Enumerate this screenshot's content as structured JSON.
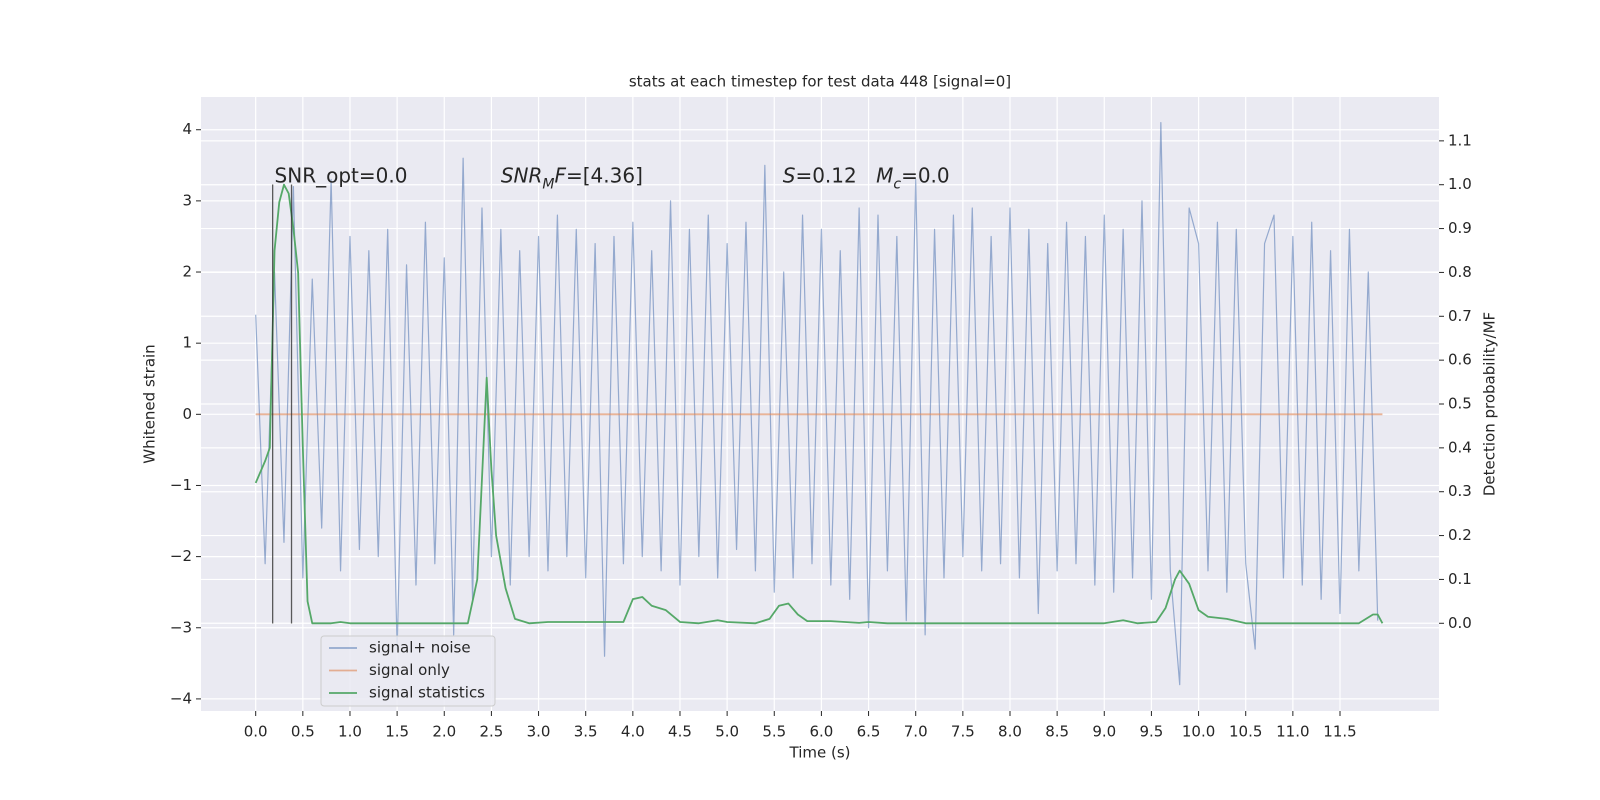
{
  "chart_data": {
    "type": "line",
    "title": "stats at each timestep for test data 448 [signal=0]",
    "xlabel": "Time (s)",
    "ylabel": "Whitened strain",
    "y2label": "Detection probability/MF",
    "xlim": [
      -0.58,
      12.55
    ],
    "ylim": [
      -4.17,
      4.46
    ],
    "y2lim": [
      -0.2,
      1.2
    ],
    "xticks": [
      {
        "value": 0,
        "label": "0.0"
      },
      {
        "value": 0.5,
        "label": "0.5"
      },
      {
        "value": 1,
        "label": "1.0"
      },
      {
        "value": 1.5,
        "label": "1.5"
      },
      {
        "value": 2,
        "label": "2.0"
      },
      {
        "value": 2.5,
        "label": "2.5"
      },
      {
        "value": 3,
        "label": "3.0"
      },
      {
        "value": 3.5,
        "label": "3.5"
      },
      {
        "value": 4,
        "label": "4.0"
      },
      {
        "value": 4.5,
        "label": "4.5"
      },
      {
        "value": 5,
        "label": "5.0"
      },
      {
        "value": 5.5,
        "label": "5.5"
      },
      {
        "value": 6,
        "label": "6.0"
      },
      {
        "value": 6.5,
        "label": "6.5"
      },
      {
        "value": 7,
        "label": "7.0"
      },
      {
        "value": 7.5,
        "label": "7.5"
      },
      {
        "value": 8,
        "label": "8.0"
      },
      {
        "value": 8.5,
        "label": "8.5"
      },
      {
        "value": 9,
        "label": "9.0"
      },
      {
        "value": 9.5,
        "label": "9.5"
      },
      {
        "value": 10,
        "label": "10.0"
      },
      {
        "value": 10.5,
        "label": "10.5"
      },
      {
        "value": 11,
        "label": "11.0"
      },
      {
        "value": 11.5,
        "label": "11.5"
      }
    ],
    "yticks": [
      {
        "value": -4,
        "label": "−4"
      },
      {
        "value": -3,
        "label": "−3"
      },
      {
        "value": -2,
        "label": "−2"
      },
      {
        "value": -1,
        "label": "−1"
      },
      0,
      1,
      2,
      3,
      4
    ],
    "y2ticks": [
      {
        "value": 0,
        "label": "0.0"
      },
      {
        "value": 0.1,
        "label": "0.1"
      },
      {
        "value": 0.2,
        "label": "0.2"
      },
      {
        "value": 0.3,
        "label": "0.3"
      },
      {
        "value": 0.4,
        "label": "0.4"
      },
      {
        "value": 0.5,
        "label": "0.5"
      },
      {
        "value": 0.6,
        "label": "0.6"
      },
      {
        "value": 0.7,
        "label": "0.7"
      },
      {
        "value": 0.8,
        "label": "0.8"
      },
      {
        "value": 0.9,
        "label": "0.9"
      },
      {
        "value": 1,
        "label": "1.0"
      },
      {
        "value": 1.1,
        "label": "1.1"
      }
    ],
    "grid": true,
    "legend": "lower left",
    "series": [
      {
        "name": "signal+ noise",
        "color": "#4c72b0",
        "axis": "y",
        "x": [
          0,
          0.1,
          0.2,
          0.3,
          0.4,
          0.5,
          0.6,
          0.7,
          0.8,
          0.9,
          1,
          1.1,
          1.2,
          1.3,
          1.4,
          1.5,
          1.6,
          1.7,
          1.8,
          1.9,
          2,
          2.1,
          2.2,
          2.3,
          2.4,
          2.5,
          2.6,
          2.7,
          2.8,
          2.9,
          3,
          3.1,
          3.2,
          3.3,
          3.4,
          3.5,
          3.6,
          3.7,
          3.8,
          3.9,
          4,
          4.1,
          4.2,
          4.3,
          4.4,
          4.5,
          4.6,
          4.7,
          4.8,
          4.9,
          5,
          5.1,
          5.2,
          5.3,
          5.4,
          5.5,
          5.6,
          5.7,
          5.8,
          5.9,
          6,
          6.1,
          6.2,
          6.3,
          6.4,
          6.5,
          6.6,
          6.7,
          6.8,
          6.9,
          7,
          7.1,
          7.2,
          7.3,
          7.4,
          7.5,
          7.6,
          7.7,
          7.8,
          7.9,
          8,
          8.1,
          8.2,
          8.3,
          8.4,
          8.5,
          8.6,
          8.7,
          8.8,
          8.9,
          9,
          9.1,
          9.2,
          9.3,
          9.4,
          9.5,
          9.6,
          9.7,
          9.8,
          9.9,
          10,
          10.1,
          10.2,
          10.3,
          10.4,
          10.5,
          10.6,
          10.7,
          10.8,
          10.9,
          11,
          11.1,
          11.2,
          11.3,
          11.4,
          11.5,
          11.6,
          11.7,
          11.8,
          11.9
        ],
        "values": [
          1.4,
          -2.1,
          2.0,
          -1.8,
          3.2,
          -2.3,
          1.9,
          -1.6,
          3.3,
          -2.2,
          2.5,
          -1.9,
          2.3,
          -2.0,
          2.6,
          -3.3,
          2.1,
          -2.4,
          2.7,
          -2.1,
          2.2,
          -3.1,
          3.6,
          -2.6,
          2.9,
          -2.0,
          2.6,
          -2.4,
          2.3,
          -2.0,
          2.5,
          -2.2,
          2.8,
          -2.0,
          2.6,
          -2.3,
          2.4,
          -3.4,
          2.5,
          -2.1,
          2.7,
          -2.0,
          2.3,
          -2.2,
          3.0,
          -2.4,
          2.6,
          -2.0,
          2.8,
          -2.3,
          2.4,
          -1.9,
          2.7,
          -2.2,
          3.5,
          -2.5,
          2.0,
          -2.3,
          2.8,
          -2.1,
          2.6,
          -2.4,
          2.3,
          -2.6,
          2.9,
          -3.0,
          2.8,
          -2.2,
          2.5,
          -2.9,
          3.3,
          -3.1,
          2.6,
          -2.3,
          2.8,
          -2.0,
          2.9,
          -2.2,
          2.5,
          -2.1,
          2.9,
          -2.3,
          2.6,
          -2.8,
          2.4,
          -2.2,
          2.7,
          -2.1,
          2.5,
          -2.4,
          2.8,
          -2.5,
          2.6,
          -2.3,
          3.0,
          -2.6,
          4.1,
          -2.2,
          -3.8,
          2.9,
          2.4,
          -2.2,
          2.7,
          -2.5,
          2.6,
          -2.1,
          -3.3,
          2.4,
          2.8,
          -2.3,
          2.5,
          -2.4,
          2.7,
          -2.6,
          2.3,
          -2.8,
          2.6,
          -2.2,
          2.0,
          -2.9
        ]
      },
      {
        "name": "signal only",
        "color": "#dd8452",
        "axis": "y",
        "x": [
          0,
          11.95
        ],
        "values": [
          0,
          0
        ]
      },
      {
        "name": "signal statistics",
        "color": "#55a868",
        "axis": "y2",
        "x": [
          0,
          0.1,
          0.15,
          0.2,
          0.25,
          0.3,
          0.35,
          0.4,
          0.45,
          0.5,
          0.55,
          0.6,
          0.8,
          0.9,
          1.0,
          2.25,
          2.35,
          2.45,
          2.5,
          2.55,
          2.65,
          2.75,
          2.9,
          3.1,
          3.9,
          4.0,
          4.1,
          4.2,
          4.35,
          4.5,
          4.7,
          4.9,
          5.0,
          5.3,
          5.45,
          5.55,
          5.65,
          5.75,
          5.85,
          6.1,
          6.4,
          6.5,
          6.7,
          9.0,
          9.2,
          9.35,
          9.55,
          9.65,
          9.75,
          9.8,
          9.9,
          10.0,
          10.1,
          10.3,
          10.5,
          11.7,
          11.85,
          11.9,
          11.95
        ],
        "values": [
          0.32,
          0.37,
          0.4,
          0.85,
          0.96,
          1.0,
          0.98,
          0.9,
          0.8,
          0.4,
          0.05,
          0.0,
          0.0,
          0.003,
          0.0,
          0.0,
          0.1,
          0.56,
          0.35,
          0.2,
          0.08,
          0.01,
          0.0,
          0.003,
          0.003,
          0.055,
          0.06,
          0.04,
          0.03,
          0.003,
          0.0,
          0.007,
          0.003,
          0.0,
          0.01,
          0.04,
          0.045,
          0.02,
          0.005,
          0.005,
          0.001,
          0.003,
          0.0,
          0.0,
          0.007,
          0.0,
          0.003,
          0.035,
          0.1,
          0.12,
          0.09,
          0.03,
          0.015,
          0.01,
          0.0,
          0.0,
          0.02,
          0.02,
          0.0
        ]
      }
    ],
    "vlines": {
      "color": "#333333",
      "x": [
        0.18,
        0.38
      ],
      "ymin": -2.94,
      "ymax": 3.23
    },
    "annotations": [
      {
        "x": 0.2,
        "y": 3.34,
        "parts": [
          {
            "text": "SNR_opt=0.0"
          }
        ]
      },
      {
        "x": 2.6,
        "y": 3.34,
        "parts": [
          {
            "text": "SNR",
            "style": "italic"
          },
          {
            "text": "M",
            "style": "sub"
          },
          {
            "text": "F",
            "style": "italic"
          },
          {
            "text": "=[4.36]"
          }
        ]
      },
      {
        "x": 5.59,
        "y": 3.34,
        "parts": [
          {
            "text": "S",
            "style": "italic"
          },
          {
            "text": "=0.12"
          }
        ]
      },
      {
        "x": 6.58,
        "y": 3.34,
        "parts": [
          {
            "text": "M",
            "style": "italic"
          },
          {
            "text": "c",
            "style": "sub"
          },
          {
            "text": "=0.0"
          }
        ]
      }
    ]
  }
}
